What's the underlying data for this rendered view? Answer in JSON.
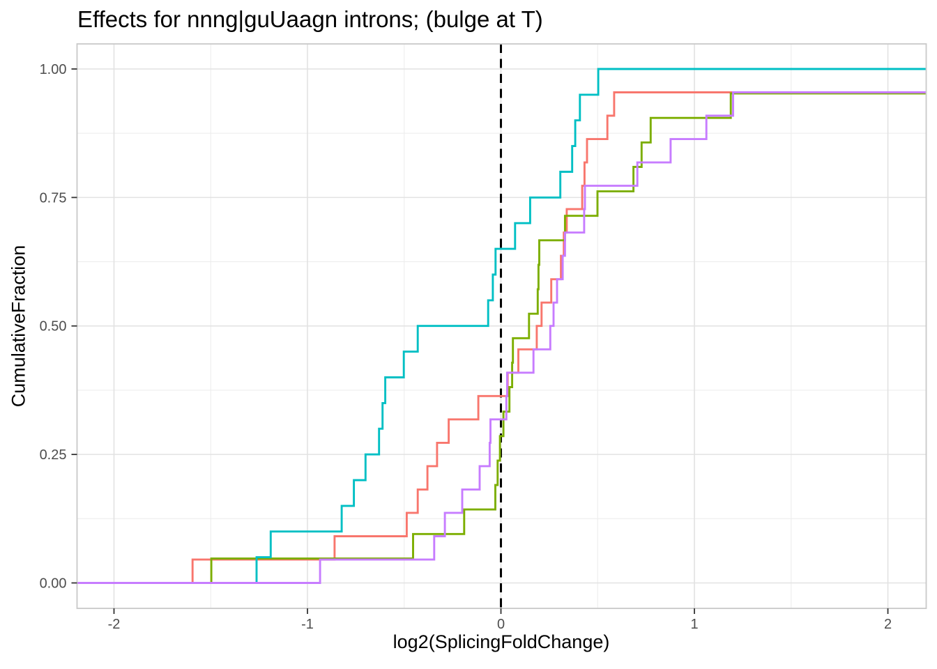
{
  "chart_data": {
    "type": "line",
    "subtype": "ecdf_step",
    "title": "Effects for nnng|guUaagn introns; (bulge at T)",
    "xlabel": "log2(SplicingFoldChange)",
    "ylabel": "CumulativeFraction",
    "xlim": [
      -2.191,
      2.198
    ],
    "ylim": [
      -0.0495,
      1.0488
    ],
    "grid": true,
    "legend_position": "none",
    "panel_border": true,
    "x_ticks": [
      {
        "v": -2,
        "label": "-2"
      },
      {
        "v": -1,
        "label": "-1"
      },
      {
        "v": 0,
        "label": "0"
      },
      {
        "v": 1,
        "label": "1"
      },
      {
        "v": 2,
        "label": "2"
      }
    ],
    "y_ticks": [
      {
        "v": 0.0,
        "label": "0.00"
      },
      {
        "v": 0.25,
        "label": "0.25"
      },
      {
        "v": 0.5,
        "label": "0.50"
      },
      {
        "v": 0.75,
        "label": "0.75"
      },
      {
        "v": 1.0,
        "label": "1.00"
      }
    ],
    "x_minor_gridlines": [
      -1.5,
      -0.5,
      0.5,
      1.5
    ],
    "y_minor_gridlines": [
      0.125,
      0.375,
      0.625,
      0.875
    ],
    "vline": {
      "x": 0,
      "style": "dashed",
      "color": "#000000"
    },
    "series": [
      {
        "name": "salmon",
        "color": "#F8766D",
        "n": 22,
        "steps": [
          [
            -1.594,
            0.0455
          ],
          [
            -0.86,
            0.0909
          ],
          [
            -0.487,
            0.1364
          ],
          [
            -0.43,
            0.1818
          ],
          [
            -0.38,
            0.2273
          ],
          [
            -0.33,
            0.2727
          ],
          [
            -0.27,
            0.3182
          ],
          [
            -0.117,
            0.3636
          ],
          [
            0.035,
            0.4091
          ],
          [
            0.09,
            0.4545
          ],
          [
            0.185,
            0.5
          ],
          [
            0.21,
            0.5455
          ],
          [
            0.26,
            0.5909
          ],
          [
            0.31,
            0.6364
          ],
          [
            0.325,
            0.6818
          ],
          [
            0.34,
            0.7273
          ],
          [
            0.42,
            0.7727
          ],
          [
            0.432,
            0.8182
          ],
          [
            0.445,
            0.8636
          ],
          [
            0.55,
            0.9091
          ],
          [
            0.585,
            0.9545
          ]
        ]
      },
      {
        "name": "olive",
        "color": "#7CAE00",
        "n": 21,
        "steps": [
          [
            -1.497,
            0.0476
          ],
          [
            -0.454,
            0.0952
          ],
          [
            -0.19,
            0.1429
          ],
          [
            -0.029,
            0.1905
          ],
          [
            -0.017,
            0.2381
          ],
          [
            -0.005,
            0.2857
          ],
          [
            0.013,
            0.3333
          ],
          [
            0.044,
            0.381
          ],
          [
            0.058,
            0.4286
          ],
          [
            0.062,
            0.4762
          ],
          [
            0.145,
            0.5238
          ],
          [
            0.19,
            0.5714
          ],
          [
            0.194,
            0.619
          ],
          [
            0.198,
            0.6667
          ],
          [
            0.331,
            0.7143
          ],
          [
            0.499,
            0.7619
          ],
          [
            0.685,
            0.8095
          ],
          [
            0.727,
            0.8571
          ],
          [
            0.774,
            0.9048
          ],
          [
            1.188,
            0.9524
          ]
        ]
      },
      {
        "name": "teal",
        "color": "#00BFC4",
        "n": 20,
        "steps": [
          [
            -1.263,
            0.05
          ],
          [
            -1.19,
            0.1
          ],
          [
            -0.823,
            0.15
          ],
          [
            -0.76,
            0.2
          ],
          [
            -0.7,
            0.25
          ],
          [
            -0.63,
            0.3
          ],
          [
            -0.612,
            0.35
          ],
          [
            -0.598,
            0.4
          ],
          [
            -0.502,
            0.45
          ],
          [
            -0.43,
            0.5
          ],
          [
            -0.066,
            0.55
          ],
          [
            -0.042,
            0.6
          ],
          [
            -0.028,
            0.65
          ],
          [
            0.073,
            0.7
          ],
          [
            0.151,
            0.75
          ],
          [
            0.307,
            0.8
          ],
          [
            0.368,
            0.85
          ],
          [
            0.384,
            0.9
          ],
          [
            0.408,
            0.95
          ],
          [
            0.503,
            1.0
          ]
        ]
      },
      {
        "name": "purple",
        "color": "#C77CFF",
        "n": 22,
        "steps": [
          [
            -0.935,
            0.0455
          ],
          [
            -0.345,
            0.0909
          ],
          [
            -0.29,
            0.1364
          ],
          [
            -0.2,
            0.1818
          ],
          [
            -0.11,
            0.2273
          ],
          [
            -0.058,
            0.2727
          ],
          [
            -0.054,
            0.3182
          ],
          [
            0.028,
            0.3636
          ],
          [
            0.032,
            0.4091
          ],
          [
            0.168,
            0.4545
          ],
          [
            0.255,
            0.5
          ],
          [
            0.272,
            0.5455
          ],
          [
            0.29,
            0.5909
          ],
          [
            0.319,
            0.6364
          ],
          [
            0.331,
            0.6818
          ],
          [
            0.43,
            0.7273
          ],
          [
            0.434,
            0.7727
          ],
          [
            0.705,
            0.8182
          ],
          [
            0.877,
            0.8636
          ],
          [
            1.062,
            0.9091
          ],
          [
            1.2,
            0.9545
          ]
        ]
      }
    ]
  }
}
